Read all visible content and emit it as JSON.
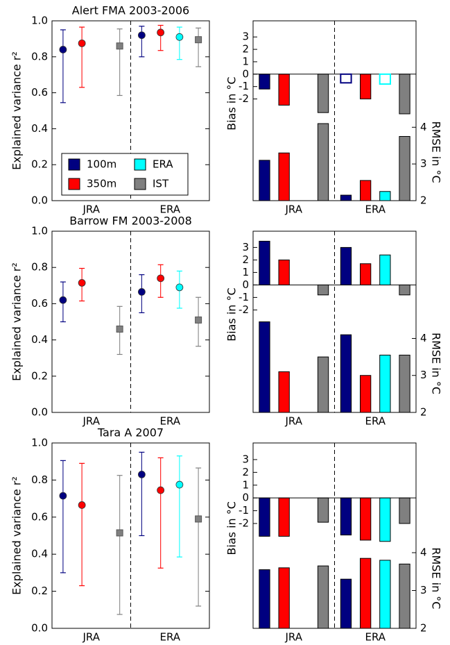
{
  "chart_data": [
    {
      "type": "errorbar",
      "title": "Alert FMA 2003-2006",
      "ylabel": "Explained variance r²",
      "categories": [
        "JRA",
        "ERA"
      ],
      "ylim": [
        0,
        1
      ],
      "yticks": [
        {
          "value": 0,
          "label": "0.0"
        },
        0.2,
        0.4,
        0.6,
        {
          "value": 0.8,
          "label": "0.8"
        },
        {
          "value": 1,
          "label": "1.0"
        }
      ],
      "separator": "dashed",
      "legend": "lower left",
      "series": [
        {
          "name": "100m",
          "color": "#000080",
          "marker": "o",
          "values": [
            0.84,
            0.92
          ],
          "lower": [
            0.545,
            0.8
          ],
          "upper": [
            0.95,
            0.97
          ]
        },
        {
          "name": "350m",
          "color": "#ff0000",
          "marker": "o",
          "values": [
            0.875,
            0.935
          ],
          "lower": [
            0.63,
            0.835
          ],
          "upper": [
            0.965,
            0.975
          ]
        },
        {
          "name": "ERA",
          "color": "#00ffff",
          "marker": "o",
          "values": [
            null,
            0.91
          ],
          "lower": [
            null,
            0.785
          ],
          "upper": [
            null,
            0.965
          ]
        },
        {
          "name": "IST",
          "color": "#808080",
          "marker": "s",
          "values": [
            0.86,
            0.895
          ],
          "lower": [
            0.585,
            0.745
          ],
          "upper": [
            0.955,
            0.96
          ]
        }
      ]
    },
    {
      "type": "bias_rmse",
      "ylabel": "Bias in °C",
      "y2label": "RMSE in °C",
      "categories": [
        "JRA",
        "ERA"
      ],
      "ylim": [
        -10.2,
        4.3
      ],
      "yticks": [
        -2,
        -1,
        0,
        1,
        2,
        3
      ],
      "y2lim": [
        2,
        6.9
      ],
      "y2ticks": [
        2,
        3,
        4
      ],
      "separator": "dashed",
      "series": [
        {
          "color": "#000080",
          "values": [
            -1.2,
            -0.7
          ],
          "open": [
            false,
            true
          ],
          "rmse": [
            3.1,
            2.15
          ]
        },
        {
          "color": "#ff0000",
          "values": [
            -2.5,
            -2.0
          ],
          "open": [
            false,
            false
          ],
          "rmse": [
            3.3,
            2.55
          ]
        },
        {
          "color": "#00ffff",
          "values": [
            null,
            -0.8
          ],
          "open": [
            false,
            true
          ],
          "rmse": [
            null,
            2.25
          ]
        },
        {
          "color": "#808080",
          "values": [
            -3.1,
            -3.2
          ],
          "open": [
            false,
            false
          ],
          "rmse": [
            4.1,
            3.75
          ]
        }
      ]
    },
    {
      "type": "errorbar",
      "title": "Barrow FM 2003-2008",
      "ylabel": "Explained variance r²",
      "categories": [
        "JRA",
        "ERA"
      ],
      "ylim": [
        0,
        1
      ],
      "yticks": [
        {
          "value": 0,
          "label": "0.0"
        },
        0.2,
        0.4,
        0.6,
        0.8,
        {
          "value": 1,
          "label": "1.0"
        }
      ],
      "separator": "dashed",
      "series": [
        {
          "color": "#000080",
          "marker": "o",
          "values": [
            0.62,
            0.665
          ],
          "lower": [
            0.5,
            0.55
          ],
          "upper": [
            0.72,
            0.76
          ]
        },
        {
          "color": "#ff0000",
          "marker": "o",
          "values": [
            0.715,
            0.74
          ],
          "lower": [
            0.615,
            0.635
          ],
          "upper": [
            0.795,
            0.815
          ]
        },
        {
          "color": "#00ffff",
          "marker": "o",
          "values": [
            null,
            0.69
          ],
          "lower": [
            null,
            0.575
          ],
          "upper": [
            null,
            0.78
          ]
        },
        {
          "color": "#808080",
          "marker": "s",
          "values": [
            0.46,
            0.51
          ],
          "lower": [
            0.32,
            0.365
          ],
          "upper": [
            0.585,
            0.635
          ]
        }
      ]
    },
    {
      "type": "bias_rmse",
      "ylabel": "Bias in °C",
      "y2label": "RMSE in °C",
      "categories": [
        "JRA",
        "ERA"
      ],
      "ylim": [
        -10.2,
        4.3
      ],
      "yticks": [
        -2,
        -1,
        0,
        1,
        2,
        3
      ],
      "y2lim": [
        2,
        6.9
      ],
      "y2ticks": [
        2,
        3,
        4
      ],
      "separator": "dashed",
      "series": [
        {
          "color": "#000080",
          "values": [
            3.5,
            3.0
          ],
          "open": [
            false,
            false
          ],
          "rmse": [
            4.45,
            4.1
          ]
        },
        {
          "color": "#ff0000",
          "values": [
            2.0,
            1.7
          ],
          "open": [
            false,
            false
          ],
          "rmse": [
            3.1,
            3.0
          ]
        },
        {
          "color": "#00ffff",
          "values": [
            null,
            2.4
          ],
          "open": [
            false,
            false
          ],
          "rmse": [
            null,
            3.55
          ]
        },
        {
          "color": "#808080",
          "values": [
            -0.8,
            -0.8
          ],
          "open": [
            false,
            false
          ],
          "rmse": [
            3.5,
            3.55
          ]
        }
      ]
    },
    {
      "type": "errorbar",
      "title": "Tara A 2007",
      "ylabel": "Explained variance r²",
      "categories": [
        "JRA",
        "ERA"
      ],
      "ylim": [
        0,
        1
      ],
      "yticks": [
        {
          "value": 0,
          "label": "0.0"
        },
        0.2,
        0.4,
        0.6,
        0.8,
        {
          "value": 1,
          "label": "1.0"
        }
      ],
      "separator": "dashed",
      "series": [
        {
          "color": "#000080",
          "marker": "o",
          "values": [
            0.715,
            0.83
          ],
          "lower": [
            0.3,
            0.5
          ],
          "upper": [
            0.905,
            0.95
          ]
        },
        {
          "color": "#ff0000",
          "marker": "o",
          "values": [
            0.665,
            0.745
          ],
          "lower": [
            0.23,
            0.325
          ],
          "upper": [
            0.89,
            0.92
          ]
        },
        {
          "color": "#00ffff",
          "marker": "o",
          "values": [
            null,
            0.775
          ],
          "lower": [
            null,
            0.385
          ],
          "upper": [
            null,
            0.93
          ]
        },
        {
          "color": "#808080",
          "marker": "s",
          "values": [
            0.515,
            0.59
          ],
          "lower": [
            0.075,
            0.12
          ],
          "upper": [
            0.825,
            0.865
          ]
        }
      ]
    },
    {
      "type": "bias_rmse",
      "ylabel": "Bias in °C",
      "y2label": "RMSE in °C",
      "categories": [
        "JRA",
        "ERA"
      ],
      "ylim": [
        -10.2,
        4.3
      ],
      "yticks": [
        -2,
        -1,
        0,
        1,
        2,
        3
      ],
      "y2lim": [
        2,
        6.9
      ],
      "y2ticks": [
        2,
        3,
        4
      ],
      "separator": "dashed",
      "series": [
        {
          "color": "#000080",
          "values": [
            -3.0,
            -2.9
          ],
          "open": [
            false,
            false
          ],
          "rmse": [
            3.55,
            3.3
          ]
        },
        {
          "color": "#ff0000",
          "values": [
            -3.0,
            -3.3
          ],
          "open": [
            false,
            false
          ],
          "rmse": [
            3.6,
            3.85
          ]
        },
        {
          "color": "#00ffff",
          "values": [
            null,
            -3.4
          ],
          "open": [
            false,
            false
          ],
          "rmse": [
            null,
            3.8
          ]
        },
        {
          "color": "#808080",
          "values": [
            -1.9,
            -2.0
          ],
          "open": [
            false,
            false
          ],
          "rmse": [
            3.65,
            3.7
          ]
        }
      ]
    }
  ]
}
